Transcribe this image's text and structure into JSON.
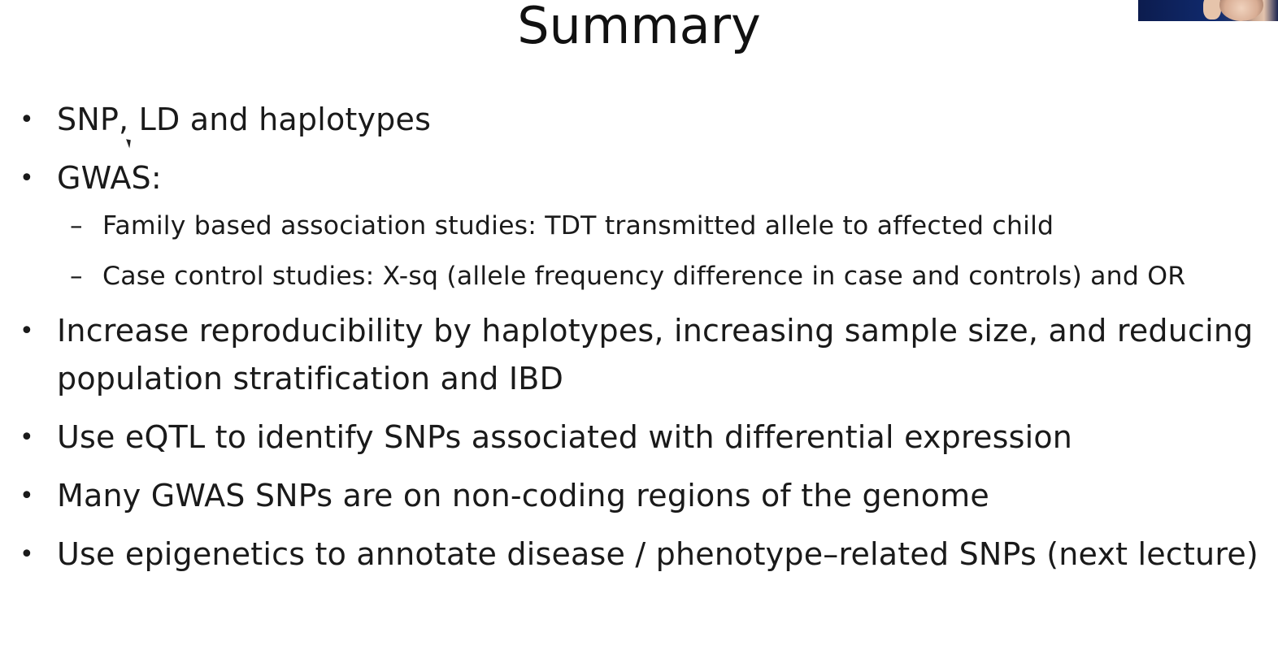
{
  "slide": {
    "title": "Summary",
    "bullets": [
      {
        "text": "SNP, LD and haplotypes"
      },
      {
        "text": "GWAS:",
        "sub": [
          "Family based association studies: TDT transmitted allele to affected child",
          "Case control studies: X-sq (allele frequency difference in case and controls) and OR"
        ]
      },
      {
        "text": "Increase reproducibility by haplotypes, increasing sample size, and reducing population stratification and IBD"
      },
      {
        "text": "Use eQTL to identify SNPs associated with differential expression"
      },
      {
        "text": "Many GWAS SNPs are on non-coding regions of the genome"
      },
      {
        "text": "Use epigenetics to annotate disease / phenotype–related SNPs (next lecture)"
      }
    ],
    "bullet_glyph": "•",
    "sub_glyph": "–"
  },
  "colors": {
    "background": "#ffffff",
    "text": "#1a1a1a"
  }
}
